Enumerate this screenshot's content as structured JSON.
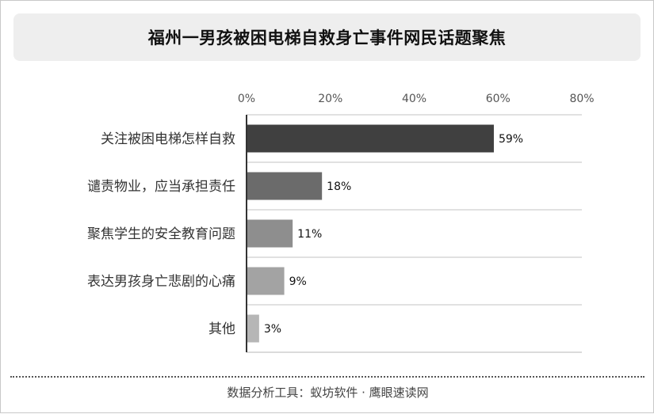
{
  "chart_data": {
    "type": "bar",
    "orientation": "horizontal",
    "title": "福州一男孩被困电梯自救身亡事件网民话题聚焦",
    "categories": [
      "关注被困电梯怎样自救",
      "谴责物业，应当承担责任",
      "聚焦学生的安全教育问题",
      "表达男孩身亡悲剧的心痛",
      "其他"
    ],
    "values": [
      59,
      18,
      11,
      9,
      3
    ],
    "data_labels": [
      "59%",
      "18%",
      "11%",
      "9%",
      "3%"
    ],
    "bar_colors": [
      "#404040",
      "#6b6b6b",
      "#8e8e8e",
      "#a3a3a3",
      "#b6b6b6"
    ],
    "xlim": [
      0,
      80
    ],
    "x_ticks": [
      0,
      20,
      40,
      60,
      80
    ],
    "x_tick_labels": [
      "0%",
      "20%",
      "40%",
      "60%",
      "80%"
    ],
    "x_axis_position": "top",
    "grid": "horizontal separators between categories",
    "legend": "none"
  },
  "footer": {
    "source": "数据分析工具：蚁坊软件 · 鹰眼速读网"
  }
}
